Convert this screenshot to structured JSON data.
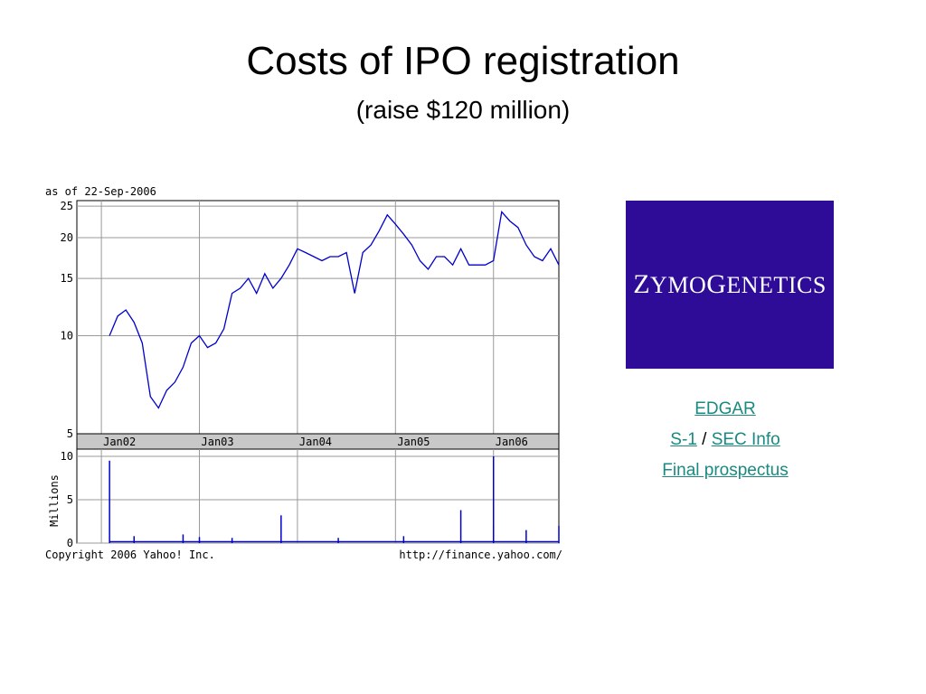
{
  "slide": {
    "title": "Costs of IPO registration",
    "subtitle": "(raise $120 million)"
  },
  "logo": {
    "text": "ZymoGenetics",
    "background": "#2e0c97"
  },
  "links": {
    "edgar": "EDGAR",
    "s1": "S-1",
    "separator": "/",
    "sec_info": "SEC Info",
    "prospectus": "Final prospectus",
    "color": "#1a8a80"
  },
  "chart_data": [
    {
      "type": "line",
      "annotation": "as of 22-Sep-2006",
      "y_scale": "log",
      "ylim": [
        5,
        26
      ],
      "yticks": [
        5,
        10,
        15,
        20,
        25
      ],
      "x_tick_labels": [
        "Jan02",
        "Jan03",
        "Jan04",
        "Jan05",
        "Jan06"
      ],
      "xlim": [
        "2001-10",
        "2006-09"
      ],
      "grid": true,
      "line_color": "#0000cc",
      "series": [
        {
          "x": [
            "2002-02",
            "2002-03",
            "2002-04",
            "2002-05",
            "2002-06",
            "2002-07",
            "2002-08",
            "2002-09",
            "2002-10",
            "2002-11",
            "2002-12",
            "2003-01",
            "2003-02",
            "2003-03",
            "2003-04",
            "2003-05",
            "2003-06",
            "2003-07",
            "2003-08",
            "2003-09",
            "2003-10",
            "2003-11",
            "2003-12",
            "2004-01",
            "2004-02",
            "2004-03",
            "2004-04",
            "2004-05",
            "2004-06",
            "2004-07",
            "2004-08",
            "2004-09",
            "2004-10",
            "2004-11",
            "2004-12",
            "2005-01",
            "2005-02",
            "2005-03",
            "2005-04",
            "2005-05",
            "2005-06",
            "2005-07",
            "2005-08",
            "2005-09",
            "2005-10",
            "2005-11",
            "2005-12",
            "2006-01",
            "2006-02",
            "2006-03",
            "2006-04",
            "2006-05",
            "2006-06",
            "2006-07",
            "2006-08",
            "2006-09"
          ],
          "y": [
            10,
            11.5,
            12,
            11,
            9.5,
            6.5,
            6,
            6.8,
            7.2,
            8,
            9.5,
            10,
            9.2,
            9.5,
            10.5,
            13.5,
            14,
            15,
            13.5,
            15.5,
            14,
            15,
            16.5,
            18.5,
            18,
            17.5,
            17,
            17.5,
            17.5,
            18,
            13.5,
            18,
            19,
            21,
            23.5,
            22,
            20.5,
            19,
            17,
            16,
            17.5,
            17.5,
            16.5,
            18.5,
            16.5,
            16.5,
            16.5,
            17,
            24,
            22.5,
            21.5,
            19,
            17.5,
            17,
            18.5,
            16.5
          ]
        }
      ]
    },
    {
      "type": "bar",
      "ylabel": "Millions",
      "ylim": [
        0,
        10
      ],
      "yticks": [
        0,
        5,
        10
      ],
      "grid": true,
      "bar_color": "#0000cc",
      "spikes": {
        "x": [
          "2002-02",
          "2002-05",
          "2002-11",
          "2003-01",
          "2003-05",
          "2003-11",
          "2004-06",
          "2005-02",
          "2005-09",
          "2006-01",
          "2006-01",
          "2006-05",
          "2006-09"
        ],
        "y": [
          9.5,
          0.8,
          1.0,
          0.7,
          0.6,
          3.2,
          0.6,
          0.8,
          3.8,
          10.0,
          2.0,
          1.5,
          2.0
        ]
      }
    }
  ],
  "footer": {
    "copyright": "Copyright 2006 Yahoo! Inc.",
    "url": "http://finance.yahoo.com/"
  }
}
